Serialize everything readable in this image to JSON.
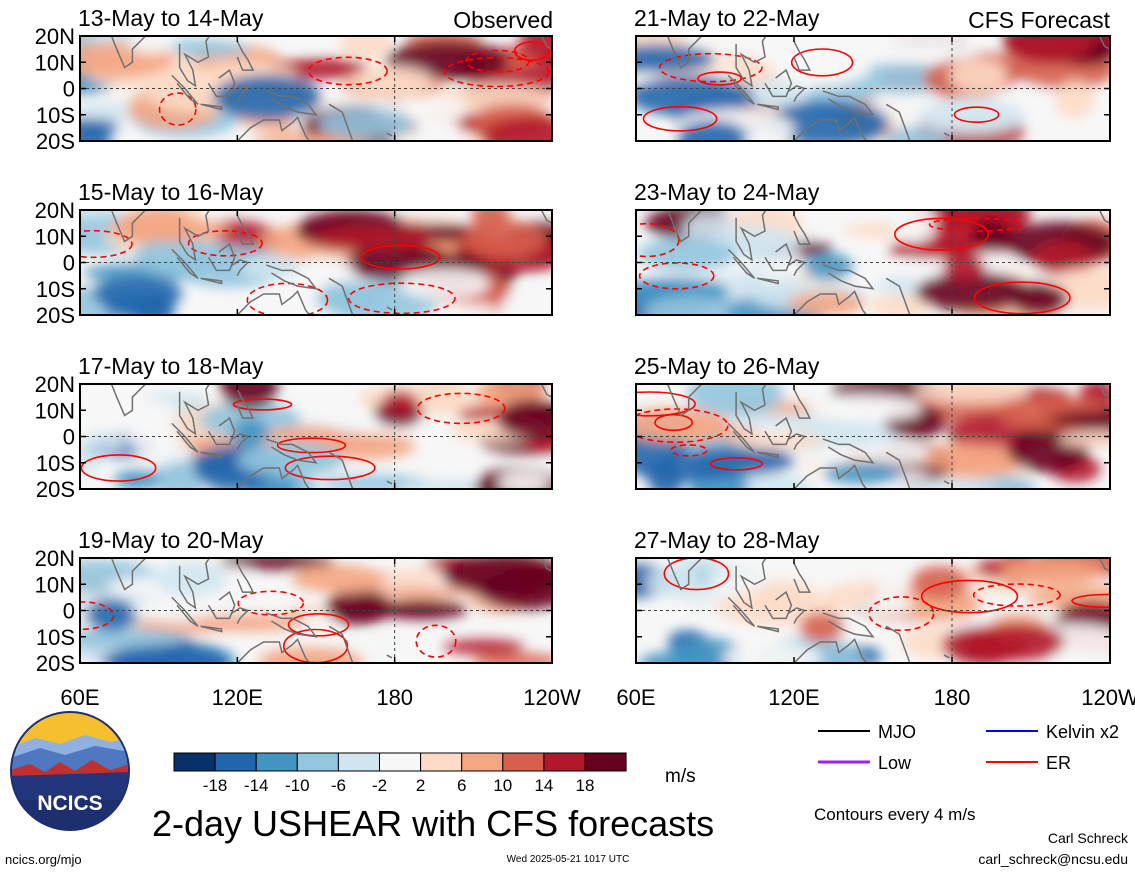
{
  "figure": {
    "title": "2-day USHEAR with CFS forecasts",
    "unit": "m/s",
    "observed_label": "Observed",
    "forecast_label": "CFS Forecast",
    "contour_note": "Contours every 4 m/s",
    "author": "Carl Schreck",
    "email": "carl_schreck@ncsu.edu",
    "site": "ncics.org/mjo",
    "timestamp": "Wed 2025-05-21 1017 UTC",
    "logo_text": "NCICS"
  },
  "legend": {
    "entries": [
      {
        "label": "MJO",
        "color": "#000000"
      },
      {
        "label": "Kelvin x2",
        "color": "#0000ff"
      },
      {
        "label": "Low",
        "color": "#a020f0"
      },
      {
        "label": "ER",
        "color": "#ff0000"
      }
    ]
  },
  "colorbar": {
    "tick_labels": [
      "-18",
      "-14",
      "-10",
      "-6",
      "-2",
      "2",
      "6",
      "10",
      "14",
      "18"
    ],
    "colors": [
      "#08306b",
      "#2166ac",
      "#4393c3",
      "#92c5de",
      "#d1e5f0",
      "#f7f7f7",
      "#fddbc7",
      "#f4a582",
      "#d6604d",
      "#b2182b",
      "#67001f"
    ]
  },
  "chart_data": {
    "type": "heatmap",
    "x_tick_labels": [
      "60E",
      "120E",
      "180",
      "120W"
    ],
    "y_tick_labels": [
      "20N",
      "10N",
      "0",
      "10S",
      "20S"
    ],
    "xlim": [
      60,
      240
    ],
    "ylim": [
      -20,
      20
    ],
    "panels": [
      {
        "period": "13-May to 14-May"
      },
      {
        "period": "15-May to 16-May"
      },
      {
        "period": "17-May to 18-May"
      },
      {
        "period": "19-May to 20-May"
      },
      {
        "period": "21-May to 22-May"
      },
      {
        "period": "23-May to 24-May"
      },
      {
        "period": "25-May to 26-May"
      },
      {
        "period": "27-May to 28-May"
      }
    ]
  }
}
